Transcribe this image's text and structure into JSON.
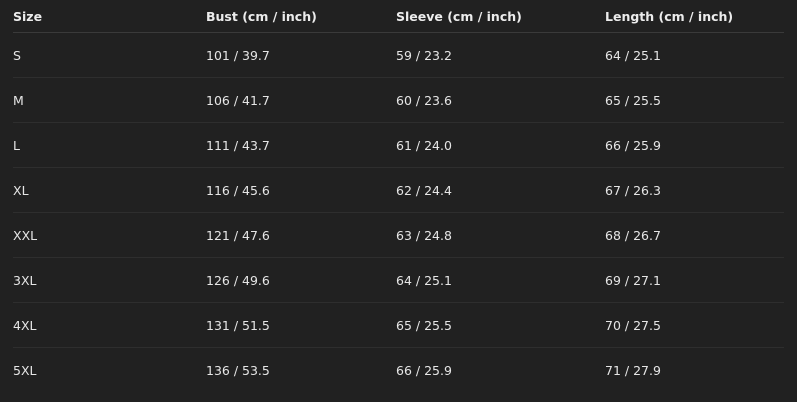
{
  "table": {
    "headers": [
      "Size",
      "Bust (cm / inch)",
      "Sleeve (cm / inch)",
      "Length (cm / inch)"
    ],
    "rows": [
      [
        "S",
        "101 / 39.7",
        "59 / 23.2",
        "64 / 25.1"
      ],
      [
        "M",
        "106 / 41.7",
        "60 / 23.6",
        "65 / 25.5"
      ],
      [
        "L",
        "111 / 43.7",
        "61 / 24.0",
        "66 / 25.9"
      ],
      [
        "XL",
        "116 / 45.6",
        "62 / 24.4",
        "67 / 26.3"
      ],
      [
        "XXL",
        "121 / 47.6",
        "63 / 24.8",
        "68 / 26.7"
      ],
      [
        "3XL",
        "126 / 49.6",
        "64 / 25.1",
        "69 / 27.1"
      ],
      [
        "4XL",
        "131 / 51.5",
        "65 / 25.5",
        "70 / 27.5"
      ],
      [
        "5XL",
        "136 / 53.5",
        "66 / 25.9",
        "71 / 27.9"
      ]
    ]
  }
}
